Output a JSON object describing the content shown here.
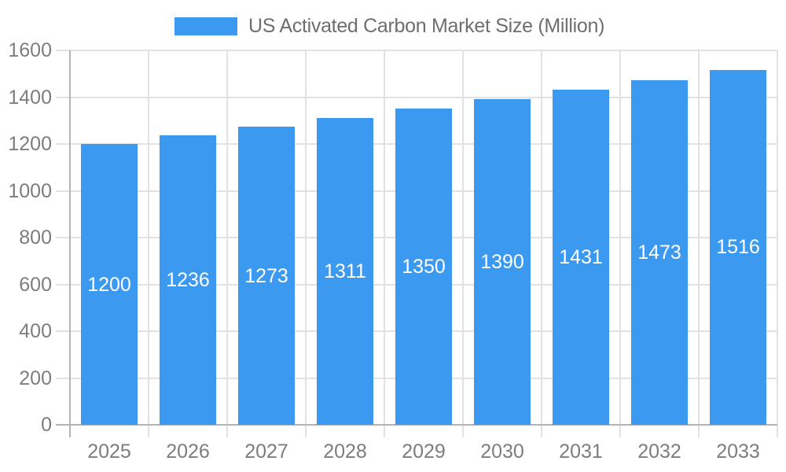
{
  "legend": {
    "label": "US Activated Carbon Market Size (Million)"
  },
  "chart_data": {
    "type": "bar",
    "title": "US Activated Carbon Market Size (Million)",
    "categories": [
      "2025",
      "2026",
      "2027",
      "2028",
      "2029",
      "2030",
      "2031",
      "2032",
      "2033"
    ],
    "values": [
      1200,
      1236,
      1273,
      1311,
      1350,
      1390,
      1431,
      1473,
      1516
    ],
    "xlabel": "",
    "ylabel": "",
    "ylim": [
      0,
      1600
    ],
    "yticks": [
      0,
      200,
      400,
      600,
      800,
      1000,
      1200,
      1400,
      1600
    ],
    "grid": true,
    "legend_position": "top",
    "value_labels": "inside-center",
    "colors": {
      "bar": "#3b99ef",
      "value_label_text": "#ffffff",
      "axis_tick_text": "#7d7d7d",
      "legend_text": "#6e6e6e",
      "gridline": "#e2e2e2",
      "axis_line": "#b3b3b3",
      "background": "#ffffff"
    }
  }
}
